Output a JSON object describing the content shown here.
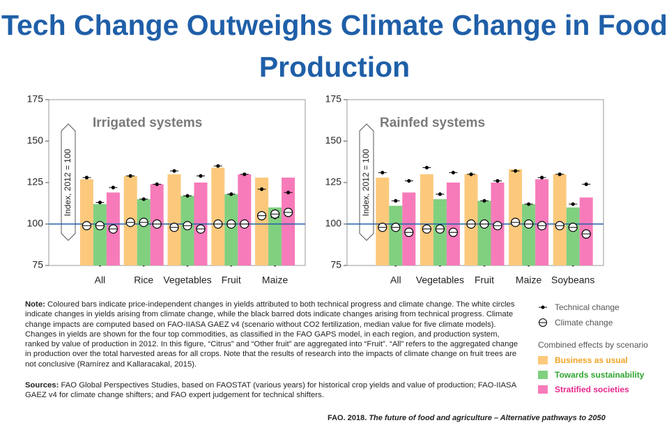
{
  "title": "Tech Change Outweighs Climate Change in Food Production",
  "chart_data": [
    {
      "type": "bar",
      "title": "Irrigated systems",
      "ylabel": "Index, 2012 = 100",
      "categories": [
        "All",
        "Rice",
        "Vegetables",
        "Fruit",
        "Maize"
      ],
      "ylim": [
        75,
        175
      ],
      "yticks": [
        75,
        100,
        125,
        150,
        175
      ],
      "reference_line": 100,
      "series": [
        {
          "name": "Business as usual",
          "color": "#fcc97c",
          "legend_color": "#f0a323",
          "values": [
            127,
            129,
            130,
            134,
            128
          ],
          "technical_change": [
            128,
            129,
            132,
            135,
            121
          ],
          "climate_change": [
            99,
            101,
            98,
            100,
            105
          ]
        },
        {
          "name": "Towards sustainability",
          "color": "#80d080",
          "legend_color": "#2fa52f",
          "values": [
            112,
            115,
            117,
            118,
            110
          ],
          "technical_change": [
            113,
            115,
            117,
            118,
            104
          ],
          "climate_change": [
            99,
            101,
            99,
            100,
            106
          ]
        },
        {
          "name": "Stratified societies",
          "color": "#f77bba",
          "legend_color": "#e8288c",
          "values": [
            119,
            124,
            125,
            130,
            128
          ],
          "technical_change": [
            122,
            124,
            129,
            130,
            119
          ],
          "climate_change": [
            97,
            100,
            97,
            100,
            107
          ]
        }
      ]
    },
    {
      "type": "bar",
      "title": "Rainfed systems",
      "ylabel": "Index, 2012 = 100",
      "categories": [
        "All",
        "Vegetables",
        "Fruit",
        "Maize",
        "Soybeans"
      ],
      "ylim": [
        75,
        175
      ],
      "yticks": [
        75,
        100,
        125,
        150,
        175
      ],
      "reference_line": 100,
      "series": [
        {
          "color": "#fcc97c",
          "values": [
            128,
            130,
            130,
            133,
            130
          ],
          "technical_change": [
            131,
            134,
            130,
            132,
            130
          ],
          "climate_change": [
            98,
            97,
            100,
            101,
            99
          ]
        },
        {
          "color": "#80d080",
          "values": [
            111,
            115,
            114,
            112,
            110
          ],
          "technical_change": [
            114,
            118,
            114,
            112,
            112
          ],
          "climate_change": [
            98,
            97,
            100,
            100,
            98
          ]
        },
        {
          "color": "#f77bba",
          "values": [
            119,
            125,
            125,
            127,
            116
          ],
          "technical_change": [
            126,
            131,
            126,
            128,
            124
          ],
          "climate_change": [
            95,
            95,
            99,
            99,
            94
          ]
        }
      ]
    }
  ],
  "legend": {
    "technical_change": "Technical change",
    "climate_change": "Climate change",
    "heading": "Combined effects by scenario"
  },
  "note_label": "Note:",
  "note": "Coloured bars indicate price-independent changes in yields attributed to both technical progress and climate change. The white circles indicate changes in yields arising from climate change, while the black barred dots indicate changes arising from technical progress. Climate change impacts are computed based on FAO-IIASA GAEZ v4 (scenario without CO2 fertilization, median value for five climate models). Changes in yields are shown for the four top commodities, as classified in the FAO GAPS model, in each region, and production system, ranked by value of production in 2012. In this figure, “Citrus” and “Other fruit” are aggregated into “Fruit”. “All” refers to the aggregated change in production over the total harvested areas for all crops. Note that the results of research into the impacts of climate change on fruit trees are not conclusive (Ramírez and Kallaracakal, 2015).",
  "sources_label": "Sources:",
  "sources": "FAO Global Perspectives Studies, based on FAOSTAT (various years) for historical crop yields and value of production; FAO-IIASA GAEZ v4 for climate change shifters; and FAO expert judgement for technical shifters.",
  "citation": "FAO. 2018.",
  "citation_title": "The future of food and agriculture – Alternative pathways to 2050"
}
